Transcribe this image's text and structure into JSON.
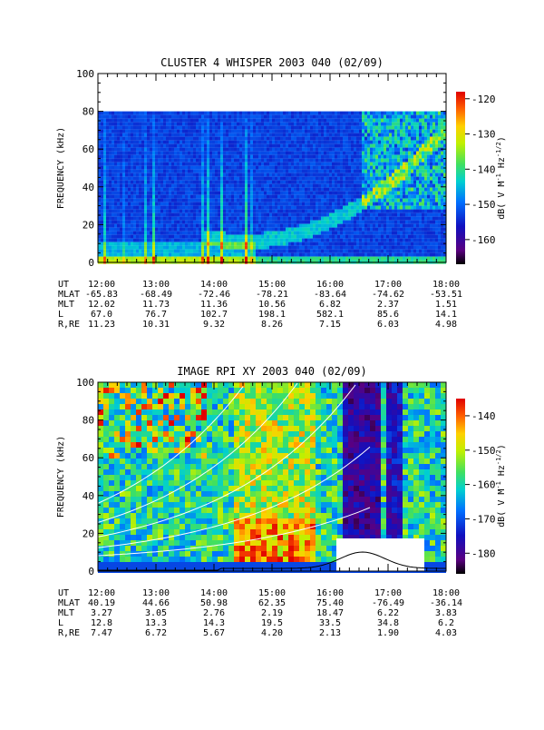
{
  "chart_data": [
    {
      "type": "heatmap",
      "title": "CLUSTER 4 WHISPER 2003 040 (02/09)",
      "ylabel": "FREQUENCY (kHz)",
      "ylim": [
        0,
        100
      ],
      "yticks": [
        "0",
        "20",
        "40",
        "60",
        "80",
        "100"
      ],
      "x_ticks": [
        "12:00",
        "13:00",
        "14:00",
        "15:00",
        "16:00",
        "17:00",
        "18:00"
      ],
      "xlim": [
        "12:00",
        "18:00"
      ],
      "data_extent_khz": [
        0,
        80
      ],
      "colorbar": {
        "label": "dB( V M⁻¹ Hz⁻¹ᐟ²)",
        "label_parts": [
          "dB( V M",
          "-1",
          " Hz",
          "-1/2",
          ")"
        ],
        "ticks": [
          "-120",
          "-130",
          "-140",
          "-150",
          "-160"
        ],
        "range": [
          -167,
          -118
        ]
      },
      "ephemeris": [
        {
          "label": "UT",
          "values": [
            "12:00",
            "13:00",
            "14:00",
            "15:00",
            "16:00",
            "17:00",
            "18:00"
          ]
        },
        {
          "label": "MLAT",
          "values": [
            "-65.83",
            "-68.49",
            "-72.46",
            "-78.21",
            "-83.64",
            "-74.62",
            "-53.51"
          ]
        },
        {
          "label": "MLT",
          "values": [
            "12.02",
            "11.73",
            "11.36",
            "10.56",
            "6.82",
            "2.37",
            "1.51"
          ]
        },
        {
          "label": "L",
          "values": [
            "67.0",
            "76.7",
            "102.7",
            "198.1",
            "582.1",
            "85.6",
            "14.1"
          ]
        },
        {
          "label": "R,RE",
          "values": [
            "11.23",
            "10.31",
            "9.32",
            "8.26",
            "7.15",
            "6.03",
            "4.98"
          ]
        }
      ]
    },
    {
      "type": "heatmap",
      "title": "IMAGE RPI XY 2003 040 (02/09)",
      "ylabel": "FREQUENCY (kHz)",
      "ylim": [
        0,
        100
      ],
      "yticks": [
        "0",
        "20",
        "40",
        "60",
        "80",
        "100"
      ],
      "x_ticks": [
        "12:00",
        "13:00",
        "14:00",
        "15:00",
        "16:00",
        "17:00",
        "18:00"
      ],
      "xlim": [
        "12:00",
        "18:00"
      ],
      "colorbar": {
        "label": "dB( V M⁻¹ Hz⁻¹ᐟ²)",
        "label_parts": [
          "dB( V M",
          "-1",
          " Hz",
          "-1/2",
          ")"
        ],
        "ticks": [
          "-140",
          "-150",
          "-160",
          "-170",
          "-180"
        ],
        "range": [
          -186,
          -135
        ]
      },
      "ephemeris": [
        {
          "label": "UT",
          "values": [
            "12:00",
            "13:00",
            "14:00",
            "15:00",
            "16:00",
            "17:00",
            "18:00"
          ]
        },
        {
          "label": "MLAT",
          "values": [
            "40.19",
            "44.66",
            "50.98",
            "62.35",
            "75.40",
            "-76.49",
            "-36.14"
          ]
        },
        {
          "label": "MLT",
          "values": [
            "3.27",
            "3.05",
            "2.76",
            "2.19",
            "18.47",
            "6.22",
            "3.83"
          ]
        },
        {
          "label": "L",
          "values": [
            "12.8",
            "13.3",
            "14.3",
            "19.5",
            "33.5",
            "34.8",
            "6.2"
          ]
        },
        {
          "label": "R,RE",
          "values": [
            "7.47",
            "6.72",
            "5.67",
            "4.20",
            "2.13",
            "1.90",
            "4.03"
          ]
        }
      ]
    }
  ]
}
